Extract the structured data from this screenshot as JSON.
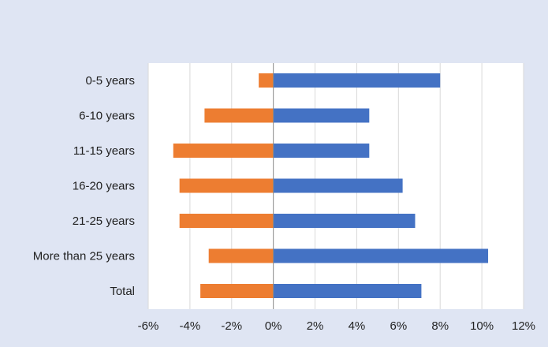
{
  "chart_data": {
    "type": "bar",
    "orientation": "horizontal",
    "stacked": true,
    "categories": [
      "0-5 years",
      "6-10 years",
      "11-15 years",
      "16-20 years",
      "21-25 years",
      "More than 25 years",
      "Total"
    ],
    "series": [
      {
        "color": "#4472c4",
        "values": [
          8.0,
          4.6,
          4.6,
          6.2,
          6.8,
          10.3,
          7.1
        ]
      },
      {
        "color": "#ed7d31",
        "values": [
          -0.7,
          -3.3,
          -4.8,
          -4.5,
          -4.5,
          -3.1,
          -3.5
        ]
      }
    ],
    "xlim": [
      -6,
      12
    ],
    "x_ticks": [
      -6,
      -4,
      -2,
      0,
      2,
      4,
      6,
      8,
      10,
      12
    ],
    "x_tick_labels": [
      "-6%",
      "-4%",
      "-2%",
      "0%",
      "2%",
      "4%",
      "6%",
      "8%",
      "10%",
      "12%"
    ],
    "grid": "vertical",
    "legend": "none",
    "title": "",
    "xlabel": "",
    "ylabel": "",
    "colors": {
      "figure_background": "#dfe5f3",
      "plot_background": "#ffffff",
      "grid": "#d9d9d9",
      "axis": "#888888"
    }
  }
}
